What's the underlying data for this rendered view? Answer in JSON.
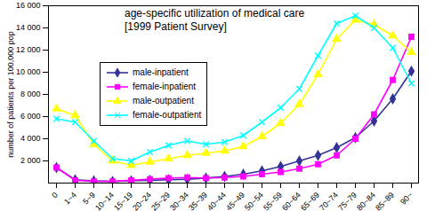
{
  "chart_data": {
    "type": "line",
    "title": "age-specific utilization of medical care\n[1999 Patient Survey]",
    "ylabel": "number of patients per 100,000 pop",
    "categories": [
      "0",
      "1~4",
      "5~9",
      "10~14",
      "15~19",
      "20~24",
      "25~29",
      "30~34",
      "35~39",
      "40~44",
      "45~49",
      "50~54",
      "55~59",
      "60~64",
      "65~69",
      "70~74",
      "75~79",
      "80~84",
      "85~89",
      "90~"
    ],
    "ylim": [
      0,
      16000
    ],
    "yticks": [
      {
        "value": 2000,
        "label": "2 000"
      },
      {
        "value": 4000,
        "label": "4 000"
      },
      {
        "value": 6000,
        "label": "6 000"
      },
      {
        "value": 8000,
        "label": "8 000"
      },
      {
        "value": 10000,
        "label": "10 000"
      },
      {
        "value": 12000,
        "label": "12 000"
      },
      {
        "value": 14000,
        "label": "14 000"
      },
      {
        "value": 16000,
        "label": "16 000"
      }
    ],
    "grid": false,
    "series": [
      {
        "name": "male-inpatient",
        "color": "#333399",
        "marker": "diamond",
        "values": [
          1400,
          300,
          200,
          150,
          200,
          250,
          300,
          350,
          450,
          600,
          800,
          1100,
          1500,
          2000,
          2500,
          3200,
          4100,
          5600,
          7600,
          10100
        ]
      },
      {
        "name": "female-inpatient",
        "color": "#ff00ff",
        "marker": "square",
        "values": [
          1400,
          250,
          150,
          150,
          250,
          350,
          450,
          500,
          450,
          500,
          600,
          800,
          1000,
          1300,
          1700,
          2500,
          4000,
          6200,
          9300,
          13200
        ]
      },
      {
        "name": "male-outpatient",
        "color": "#ffff00",
        "marker": "triangle",
        "values": [
          6700,
          6100,
          3500,
          2000,
          1600,
          1900,
          2200,
          2500,
          2700,
          2900,
          3300,
          4200,
          5400,
          7100,
          9800,
          13000,
          14700,
          14300,
          13300,
          11800
        ]
      },
      {
        "name": "female-outpatient",
        "color": "#00ffff",
        "marker": "x",
        "values": [
          5800,
          5500,
          3800,
          2200,
          2000,
          2800,
          3400,
          3800,
          3500,
          3700,
          4300,
          5500,
          6800,
          8500,
          11500,
          14400,
          15100,
          14000,
          12200,
          9000
        ]
      }
    ]
  }
}
